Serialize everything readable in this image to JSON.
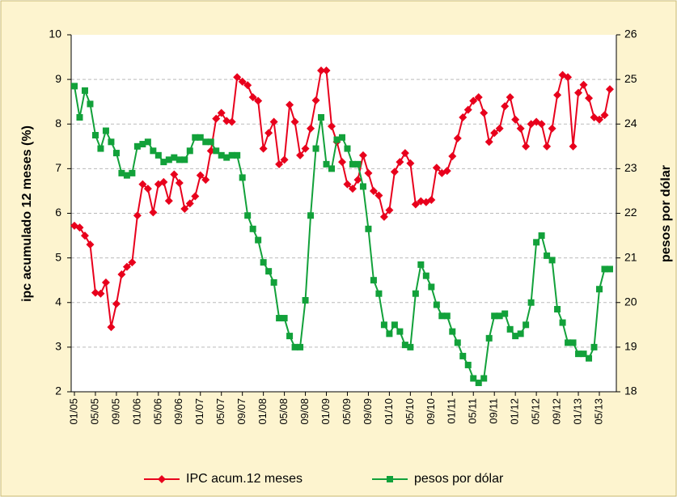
{
  "chart_data": {
    "type": "line",
    "ylabel": "ipc acumulado 12 meses (%)",
    "y2label": "pesos por dólar",
    "categories": [
      "01/05",
      null,
      null,
      null,
      "05/05",
      null,
      null,
      null,
      "09/05",
      null,
      null,
      null,
      "01/06",
      null,
      null,
      null,
      "05/06",
      null,
      null,
      null,
      "09/06",
      null,
      null,
      null,
      "01/07",
      null,
      null,
      null,
      "05/07",
      null,
      null,
      null,
      "09/07",
      null,
      null,
      null,
      "01/08",
      null,
      null,
      null,
      "05/08",
      null,
      null,
      null,
      "09/08",
      null,
      null,
      null,
      "01/09",
      null,
      null,
      null,
      "05/09",
      null,
      null,
      null,
      "09/09",
      null,
      null,
      null,
      "01/10",
      null,
      null,
      null,
      "05/10",
      null,
      null,
      null,
      "09/10",
      null,
      null,
      null,
      "01/11",
      null,
      null,
      null,
      "05/11",
      null,
      null,
      null,
      "09/11",
      null,
      null,
      null,
      "01/12",
      null,
      null,
      null,
      "05/12",
      null,
      null,
      null,
      "09/12",
      null,
      null,
      null,
      "01/13",
      null,
      null,
      null,
      "05/13",
      null,
      null
    ],
    "series": [
      {
        "name": "IPC acum.12 meses",
        "color": "#e8001c",
        "marker": "diamond",
        "values": [
          5.72,
          5.68,
          5.5,
          5.3,
          4.22,
          4.2,
          4.45,
          3.45,
          3.97,
          4.63,
          4.8,
          4.9,
          5.95,
          6.65,
          6.55,
          6.02,
          6.65,
          6.7,
          6.28,
          6.87,
          6.68,
          6.1,
          6.22,
          6.38,
          6.85,
          6.75,
          7.4,
          8.12,
          8.25,
          8.07,
          8.05,
          9.05,
          8.95,
          8.87,
          8.6,
          8.52,
          7.45,
          7.8,
          8.05,
          7.1,
          7.2,
          8.43,
          8.05,
          7.3,
          7.45,
          7.9,
          8.53,
          9.2,
          9.2,
          7.95,
          7.6,
          7.15,
          6.65,
          6.55,
          6.75,
          7.3,
          6.9,
          6.5,
          6.4,
          5.92,
          6.07,
          6.93,
          7.15,
          7.35,
          7.12,
          6.2,
          6.27,
          6.25,
          6.3,
          7.02,
          6.9,
          6.95,
          7.28,
          7.68,
          8.15,
          8.32,
          8.52,
          8.6,
          8.25,
          7.6,
          7.8,
          7.9,
          8.4,
          8.6,
          8.1,
          7.9,
          7.5,
          8.0,
          8.05,
          8.0,
          7.5,
          7.9,
          8.65,
          9.1,
          9.05,
          7.5,
          8.7,
          8.88,
          8.58,
          8.15,
          8.1,
          8.2,
          8.78
        ]
      },
      {
        "name": "pesos por dólar",
        "color": "#12a13a",
        "marker": "square",
        "axis": "y2",
        "values": [
          24.85,
          24.15,
          24.75,
          24.45,
          23.75,
          23.45,
          23.85,
          23.6,
          23.35,
          22.9,
          22.85,
          22.9,
          23.5,
          23.55,
          23.6,
          23.4,
          23.3,
          23.15,
          23.2,
          23.25,
          23.2,
          23.2,
          23.4,
          23.7,
          23.7,
          23.6,
          23.6,
          23.4,
          23.3,
          23.25,
          23.3,
          23.3,
          22.8,
          21.95,
          21.65,
          21.4,
          20.9,
          20.7,
          20.45,
          19.65,
          19.65,
          19.25,
          19.0,
          19.0,
          20.05,
          21.95,
          23.45,
          24.15,
          23.1,
          23.0,
          23.65,
          23.7,
          23.45,
          23.1,
          23.1,
          22.6,
          21.65,
          20.5,
          20.2,
          19.5,
          19.3,
          19.5,
          19.35,
          19.05,
          19.0,
          20.2,
          20.85,
          20.6,
          20.35,
          19.95,
          19.7,
          19.7,
          19.35,
          19.1,
          18.8,
          18.6,
          18.3,
          18.2,
          18.3,
          19.2,
          19.7,
          19.7,
          19.75,
          19.4,
          19.25,
          19.3,
          19.5,
          20.0,
          21.35,
          21.5,
          21.05,
          20.95,
          19.85,
          19.55,
          19.1,
          19.1,
          18.85,
          18.85,
          18.75,
          19.0,
          20.3,
          20.75,
          20.75
        ]
      }
    ],
    "ylim": [
      2,
      10
    ],
    "yticks": [
      2,
      3,
      4,
      5,
      6,
      7,
      8,
      9,
      10
    ],
    "y2lim": [
      18,
      26
    ],
    "y2ticks": [
      18,
      19,
      20,
      21,
      22,
      23,
      24,
      25,
      26
    ],
    "grid": true,
    "legend": "bottom"
  }
}
